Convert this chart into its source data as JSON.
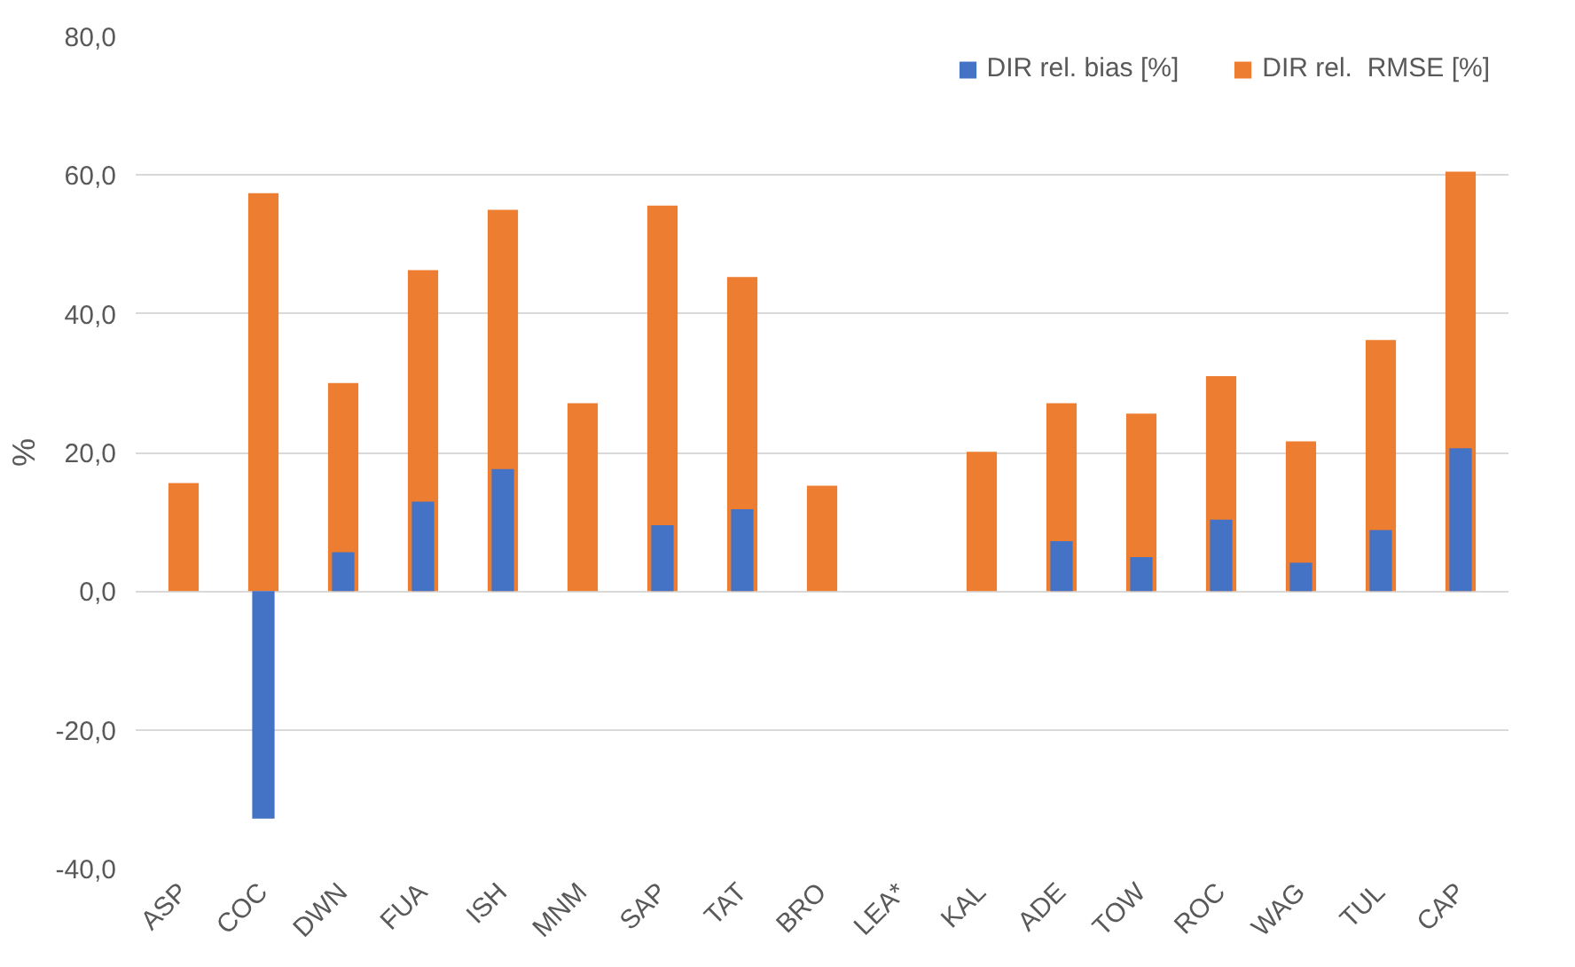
{
  "chart_data": {
    "type": "bar",
    "ylabel": "%",
    "categories": [
      "ASP",
      "COC",
      "DWN",
      "FUA",
      "ISH",
      "MNM",
      "SAP",
      "TAT",
      "BRO",
      "LEA*",
      "KAL",
      "ADE",
      "TOW",
      "ROC",
      "WAG",
      "TUL",
      "CAP"
    ],
    "series": [
      {
        "name": "DIR rel. bias [%]",
        "color": "#4472c4",
        "values": [
          null,
          -32.8,
          5.6,
          12.9,
          17.6,
          null,
          9.5,
          11.8,
          null,
          null,
          null,
          7.2,
          4.9,
          10.3,
          4.1,
          8.8,
          20.6
        ]
      },
      {
        "name": "DIR rel.  RMSE [%]",
        "color": "#ed7d31",
        "values": [
          15.6,
          57.4,
          30.0,
          46.3,
          55.0,
          27.1,
          55.6,
          45.3,
          15.2,
          null,
          20.1,
          27.1,
          25.6,
          31.0,
          21.6,
          36.2,
          60.5
        ]
      }
    ],
    "ylim": [
      -40,
      80
    ],
    "yticks": [
      {
        "value": -40,
        "label": "-40,0"
      },
      {
        "value": -20,
        "label": "-20,0"
      },
      {
        "value": 0,
        "label": "0,0"
      },
      {
        "value": 20,
        "label": "20,0"
      },
      {
        "value": 40,
        "label": "40,0"
      },
      {
        "value": 60,
        "label": "60,0"
      },
      {
        "value": 80,
        "label": "80,0"
      }
    ],
    "grid": "y",
    "legend": "top right"
  }
}
